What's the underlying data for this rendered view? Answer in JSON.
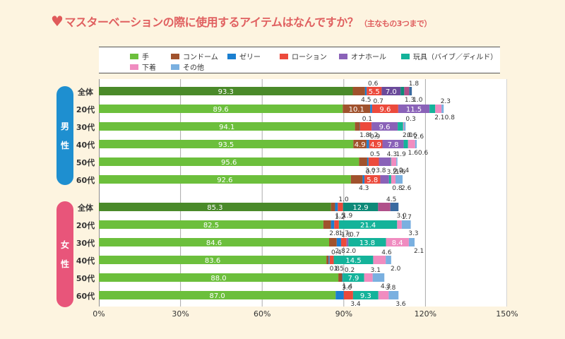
{
  "chart_data": {
    "type": "bar",
    "orientation": "horizontal",
    "stacked": true,
    "title": "マスターベーションの際に使用するアイテムはなんですか？",
    "subtitle": "（主なもの3つまで）",
    "xlabel": "",
    "ylabel": "",
    "xlim": [
      0,
      150
    ],
    "x_ticks": [
      "0%",
      "30%",
      "60%",
      "90%",
      "120%",
      "150%"
    ],
    "grid": true,
    "legend_position": "top",
    "groups": [
      {
        "label": "男性",
        "color": "#1e8fd0",
        "rows": [
          0,
          1,
          2,
          3,
          4,
          5
        ]
      },
      {
        "label": "女性",
        "color": "#e8557a",
        "rows": [
          6,
          7,
          8,
          9,
          10,
          11
        ]
      }
    ],
    "categories": [
      "全体",
      "20代",
      "30代",
      "40代",
      "50代",
      "60代",
      "全体",
      "20代",
      "30代",
      "40代",
      "50代",
      "60代"
    ],
    "series": [
      {
        "name": "手",
        "color": "#6cbf3c",
        "values": [
          93.3,
          89.6,
          94.1,
          93.5,
          95.6,
          92.6,
          85.3,
          82.5,
          84.6,
          83.6,
          88.0,
          87.0
        ]
      },
      {
        "name": "コンドーム",
        "color": "#a0522d",
        "values": [
          4.5,
          10.1,
          1.8,
          4.9,
          3.0,
          4.3,
          1.5,
          2.8,
          2.8,
          0.8,
          1.4,
          0
        ]
      },
      {
        "name": "ゼリー",
        "color": "#1b7fd0",
        "values": [
          0.6,
          0.7,
          0.1,
          0.9,
          0.5,
          0.7,
          1.0,
          1.2,
          1.6,
          0.4,
          0.2,
          3.0
        ]
      },
      {
        "name": "ローション",
        "color": "#ec4a3c",
        "values": [
          5.5,
          9.6,
          4.2,
          4.9,
          3.8,
          5.8,
          1.9,
          1.7,
          2.0,
          1.5,
          0,
          3.4
        ]
      },
      {
        "name": "オナホール",
        "color": "#8a62b8",
        "values": [
          7.0,
          11.5,
          9.6,
          7.8,
          4.3,
          3.2,
          0,
          0,
          0.7,
          0,
          0,
          0
        ]
      },
      {
        "name": "玩具（バイブ／ディルド）",
        "color": "#14b39a",
        "values": [
          1.3,
          2.1,
          2.0,
          1.6,
          0.2,
          0.8,
          12.9,
          21.4,
          13.8,
          14.5,
          7.9,
          9.3
        ]
      },
      {
        "name": "下着",
        "color": "#f08cc0",
        "values": [
          1.8,
          2.3,
          0.3,
          2.6,
          1.9,
          1.6,
          4.5,
          1.7,
          8.4,
          4.6,
          3.1,
          3.8
        ]
      },
      {
        "name": "その他",
        "color": "#7ab0e0",
        "values": [
          1.0,
          0.8,
          0.6,
          0.6,
          0.4,
          2.6,
          3.0,
          3.3,
          2.1,
          2.0,
          4.3,
          3.6
        ]
      }
    ],
    "overall_row_colors": {
      "手": "#4a8a2a",
      "オナホール": "#6a4a9a",
      "玩具（バイブ／ディルド）": "#0e8a78",
      "下着": "#b0508a",
      "その他": "#3a6aa0"
    }
  }
}
